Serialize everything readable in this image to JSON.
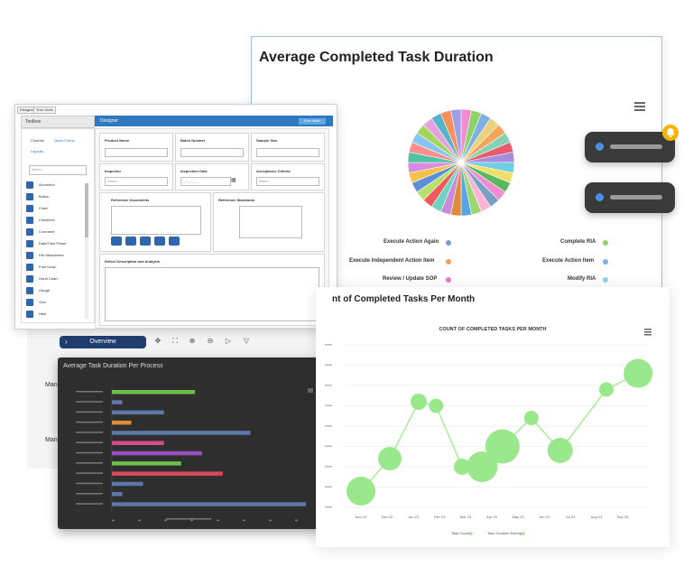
{
  "pie_card": {
    "title": "Average Completed Task Duration",
    "legend": [
      {
        "label": "Execute Action Again",
        "color": "#7aa0c4"
      },
      {
        "label": "Complete RIA",
        "color": "#8fd36d"
      },
      {
        "label": "Execute Independent Action Item",
        "color": "#f0a058"
      },
      {
        "label": "Execute Action Item",
        "color": "#7fb0e0"
      },
      {
        "label": "Review / Update SOP",
        "color": "#e877c4"
      },
      {
        "label": "Modify RIA",
        "color": "#8fd0e8"
      }
    ],
    "slice_colors": [
      "#f28cd0",
      "#8fd36d",
      "#7fb0e0",
      "#e8d27a",
      "#f3a55c",
      "#86d2b0",
      "#e55c6e",
      "#a58de0",
      "#6fcfe0",
      "#f0e06a",
      "#5cb85c",
      "#f28cd0",
      "#7aa0c4",
      "#ffb3d9",
      "#9bd86f",
      "#58a6e6",
      "#e08a3c",
      "#c78bd8",
      "#6ad6c2",
      "#ef5b5b",
      "#b6e06e",
      "#5d8fd8",
      "#f7c04a",
      "#d98ce0",
      "#4fc3a1",
      "#ff8f8f",
      "#87c5f0",
      "#a4d65e",
      "#e6a0e0",
      "#56b4c8",
      "#f5905a",
      "#9f9fe8"
    ]
  },
  "toggles": [
    {
      "state": "on"
    },
    {
      "state": "on"
    }
  ],
  "designer": {
    "tabs": [
      "Designer",
      "Tree Grids"
    ],
    "toolbox_title": "Toolbox",
    "designer_title": "Designer",
    "form_button": "Form Width",
    "toolbox_tabs": [
      "Controls",
      "Quick Forms",
      "Layouts"
    ],
    "search_placeholder": "Search...",
    "toolbox_items": [
      "Accordion",
      "Button",
      "Chart",
      "Checkbox",
      "Comment",
      "Date/Time Picker",
      "File Attachment",
      "Free Draw",
      "Gantt Chart",
      "Gauge",
      "Grid",
      "Html"
    ],
    "fields": {
      "product_name": "Product Name",
      "batch_number": "Batch Number",
      "sample_size": "Sample Size",
      "inspector": "Inspector",
      "inspector_placeholder": "Select...",
      "inspection_date": "Inspection Date",
      "date_placeholder": "__/__/____",
      "acceptance_criteria": "Acceptance Criteria",
      "acceptance_placeholder": "Select...",
      "reference_documents": "Reference Documents",
      "reference_standards": "Reference Standards",
      "defect_description": "Defect Description and Analysis"
    }
  },
  "overview": {
    "label": "Overview",
    "left_labels": [
      "Manu",
      "Manu"
    ]
  },
  "bar_chart": {
    "title": "Average Task Duration Per Process"
  },
  "chart_data": [
    {
      "type": "bar",
      "title": "Average Task Duration Per Process",
      "orientation": "horizontal",
      "values": [
        12,
        1.5,
        7.5,
        2.8,
        20,
        7.5,
        13,
        10,
        16,
        4.5,
        1.5,
        28
      ],
      "colors": [
        "#6cc04a",
        "#5b78a8",
        "#5b78a8",
        "#e08a3c",
        "#5b78a8",
        "#d84a8a",
        "#9a4ec0",
        "#6cc04a",
        "#d84a5a",
        "#5b78a8",
        "#5b78a8",
        "#5b78a8"
      ]
    },
    {
      "type": "scatter",
      "title": "COUNT OF COMPLETED TASKS PER MONTH",
      "categories": [
        "Nov 22",
        "Dec 22",
        "Jan 23",
        "Feb 23",
        "Mar 23",
        "Apr 23",
        "May 23",
        "Jun 23",
        "Jul 23",
        "Aug 23",
        "Sep 23"
      ],
      "x": [
        0,
        1,
        2,
        2.6,
        3.5,
        4.2,
        4.9,
        5.9,
        6.9,
        8.5,
        9.6
      ],
      "y": [
        4,
        12,
        26,
        25,
        10,
        10,
        15,
        22,
        14,
        29,
        33
      ],
      "sizes": [
        16,
        13,
        9,
        8,
        9,
        17,
        19,
        8,
        14,
        8,
        16
      ],
      "legend": [
        "Task Count",
        "Task Duration Average"
      ],
      "ylim": [
        0,
        40
      ]
    }
  ],
  "line_card": {
    "header": "nt of Completed Tasks Per Month"
  }
}
